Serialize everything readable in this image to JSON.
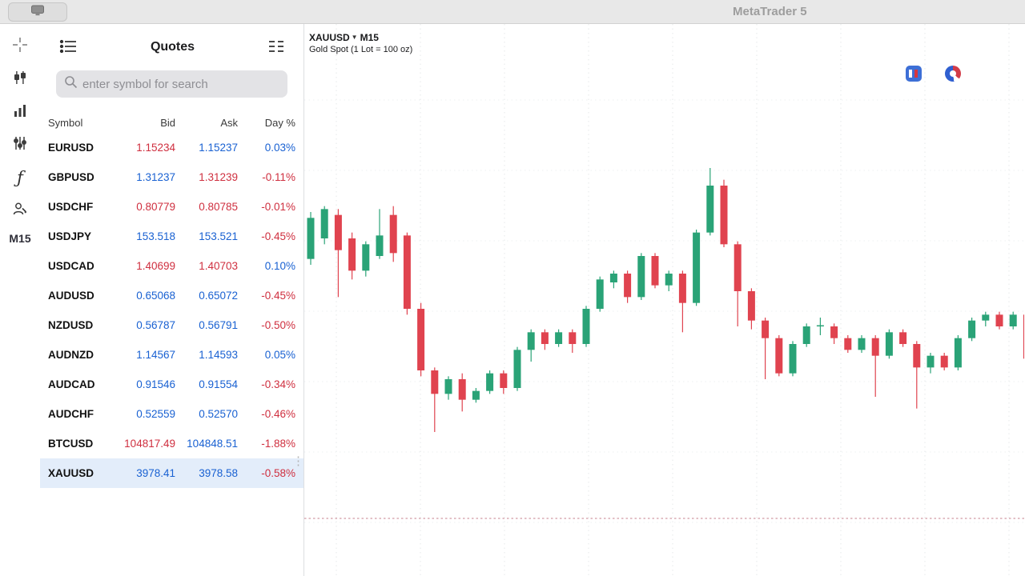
{
  "titlebar": {
    "app_title": "MetaTrader 5",
    "tab_icon": "screen-icon"
  },
  "colors": {
    "blue": "#1961d2",
    "red": "#cf2f3f"
  },
  "sidebar": {
    "icons": [
      "crosshair",
      "candlestick-chart",
      "bar-chart",
      "indicator-sliders",
      "function",
      "account-edit"
    ],
    "timeframe": "M15"
  },
  "quotes": {
    "title": "Quotes",
    "menu_icon": "list-icon",
    "layout_icon": "table-icon",
    "search_placeholder": "enter symbol for search",
    "columns": [
      "Symbol",
      "Bid",
      "Ask",
      "Day %"
    ],
    "rows": [
      {
        "symbol": "EURUSD",
        "bid": "1.15234",
        "ask": "1.15237",
        "day": "0.03%",
        "bid_color": "red",
        "ask_color": "blue",
        "day_color": "blue",
        "selected": false
      },
      {
        "symbol": "GBPUSD",
        "bid": "1.31237",
        "ask": "1.31239",
        "day": "-0.11%",
        "bid_color": "blue",
        "ask_color": "red",
        "day_color": "red",
        "selected": false
      },
      {
        "symbol": "USDCHF",
        "bid": "0.80779",
        "ask": "0.80785",
        "day": "-0.01%",
        "bid_color": "red",
        "ask_color": "red",
        "day_color": "red",
        "selected": false
      },
      {
        "symbol": "USDJPY",
        "bid": "153.518",
        "ask": "153.521",
        "day": "-0.45%",
        "bid_color": "blue",
        "ask_color": "blue",
        "day_color": "red",
        "selected": false
      },
      {
        "symbol": "USDCAD",
        "bid": "1.40699",
        "ask": "1.40703",
        "day": "0.10%",
        "bid_color": "red",
        "ask_color": "red",
        "day_color": "blue",
        "selected": false
      },
      {
        "symbol": "AUDUSD",
        "bid": "0.65068",
        "ask": "0.65072",
        "day": "-0.45%",
        "bid_color": "blue",
        "ask_color": "blue",
        "day_color": "red",
        "selected": false
      },
      {
        "symbol": "NZDUSD",
        "bid": "0.56787",
        "ask": "0.56791",
        "day": "-0.50%",
        "bid_color": "blue",
        "ask_color": "blue",
        "day_color": "red",
        "selected": false
      },
      {
        "symbol": "AUDNZD",
        "bid": "1.14567",
        "ask": "1.14593",
        "day": "0.05%",
        "bid_color": "blue",
        "ask_color": "blue",
        "day_color": "blue",
        "selected": false
      },
      {
        "symbol": "AUDCAD",
        "bid": "0.91546",
        "ask": "0.91554",
        "day": "-0.34%",
        "bid_color": "blue",
        "ask_color": "blue",
        "day_color": "red",
        "selected": false
      },
      {
        "symbol": "AUDCHF",
        "bid": "0.52559",
        "ask": "0.52570",
        "day": "-0.46%",
        "bid_color": "blue",
        "ask_color": "blue",
        "day_color": "red",
        "selected": false
      },
      {
        "symbol": "BTCUSD",
        "bid": "104817.49",
        "ask": "104848.51",
        "day": "-1.88%",
        "bid_color": "red",
        "ask_color": "blue",
        "day_color": "red",
        "selected": false
      },
      {
        "symbol": "XAUUSD",
        "bid": "3978.41",
        "ask": "3978.58",
        "day": "-0.58%",
        "bid_color": "blue",
        "ask_color": "blue",
        "day_color": "red",
        "selected": true
      }
    ]
  },
  "chart": {
    "symbol": "XAUUSD",
    "timeframe": "M15",
    "description": "Gold Spot (1 Lot = 100 oz)",
    "toolbar_icons": [
      "trade-icon",
      "indicators-donut-icon"
    ]
  },
  "chart_data": {
    "type": "candlestick",
    "title": "XAUUSD M15",
    "grid": true,
    "colors": {
      "up": "#2aa377",
      "down": "#e0434f",
      "price_line": "#c7808d"
    },
    "candles": [
      [
        3995.5,
        4003.5,
        3994.5,
        4002.5
      ],
      [
        3999.0,
        4004.5,
        3998.0,
        4004.0
      ],
      [
        4003.0,
        4004.0,
        3989.0,
        3997.0
      ],
      [
        3999.0,
        4000.0,
        3992.0,
        3993.5
      ],
      [
        3993.5,
        3998.5,
        3992.5,
        3998.0
      ],
      [
        3996.0,
        4004.0,
        3995.5,
        3999.5
      ],
      [
        4003.0,
        4004.5,
        3995.0,
        3996.5
      ],
      [
        3999.5,
        4000.0,
        3986.0,
        3987.0
      ],
      [
        3987.0,
        3988.0,
        3975.5,
        3976.5
      ],
      [
        3976.5,
        3977.0,
        3966.0,
        3972.5
      ],
      [
        3972.5,
        3975.5,
        3971.5,
        3975.0
      ],
      [
        3975.0,
        3976.0,
        3969.5,
        3971.5
      ],
      [
        3971.5,
        3973.5,
        3971.0,
        3973.0
      ],
      [
        3973.0,
        3976.5,
        3972.5,
        3976.0
      ],
      [
        3976.0,
        3976.5,
        3972.5,
        3973.5
      ],
      [
        3973.5,
        3980.5,
        3973.0,
        3980.0
      ],
      [
        3980.0,
        3983.5,
        3978.0,
        3983.0
      ],
      [
        3983.0,
        3983.5,
        3980.0,
        3981.0
      ],
      [
        3981.0,
        3983.5,
        3980.5,
        3983.0
      ],
      [
        3983.0,
        3983.5,
        3979.5,
        3981.0
      ],
      [
        3981.0,
        3987.5,
        3980.5,
        3987.0
      ],
      [
        3987.0,
        3992.5,
        3986.5,
        3992.0
      ],
      [
        3991.5,
        3993.5,
        3990.5,
        3993.0
      ],
      [
        3993.0,
        3993.5,
        3988.0,
        3989.0
      ],
      [
        3989.0,
        3996.5,
        3988.5,
        3996.0
      ],
      [
        3996.0,
        3996.5,
        3990.5,
        3991.0
      ],
      [
        3991.0,
        3993.5,
        3990.0,
        3993.0
      ],
      [
        3993.0,
        3993.5,
        3983.0,
        3988.0
      ],
      [
        3988.0,
        4000.5,
        3987.5,
        4000.0
      ],
      [
        4000.0,
        4011.0,
        3999.5,
        4008.0
      ],
      [
        4008.0,
        4009.0,
        3997.5,
        3998.0
      ],
      [
        3998.0,
        3998.5,
        3984.0,
        3990.0
      ],
      [
        3990.0,
        3990.5,
        3983.5,
        3985.0
      ],
      [
        3985.0,
        3985.5,
        3975.0,
        3982.0
      ],
      [
        3982.0,
        3982.5,
        3975.5,
        3976.0
      ],
      [
        3976.0,
        3981.5,
        3975.5,
        3981.0
      ],
      [
        3981.0,
        3984.5,
        3980.5,
        3984.0
      ],
      [
        3984.0,
        3985.5,
        3982.5,
        3984.2
      ],
      [
        3984.0,
        3984.5,
        3981.0,
        3982.0
      ],
      [
        3982.0,
        3982.5,
        3979.5,
        3980.0
      ],
      [
        3980.0,
        3982.5,
        3979.5,
        3982.0
      ],
      [
        3982.0,
        3982.5,
        3972.0,
        3979.0
      ],
      [
        3979.0,
        3983.5,
        3978.5,
        3983.0
      ],
      [
        3983.0,
        3983.5,
        3980.5,
        3981.0
      ],
      [
        3981.0,
        3981.5,
        3970.0,
        3977.0
      ],
      [
        3977.0,
        3979.5,
        3976.0,
        3979.0
      ],
      [
        3979.0,
        3979.5,
        3976.5,
        3977.0
      ],
      [
        3977.0,
        3982.5,
        3976.5,
        3982.0
      ],
      [
        3982.0,
        3985.5,
        3981.5,
        3985.0
      ],
      [
        3985.0,
        3986.5,
        3984.0,
        3986.0
      ],
      [
        3986.0,
        3986.5,
        3983.5,
        3984.0
      ],
      [
        3984.0,
        3986.5,
        3983.5,
        3986.0
      ],
      [
        3986.0,
        3987.0,
        3976.0,
        3978.5
      ]
    ]
  }
}
